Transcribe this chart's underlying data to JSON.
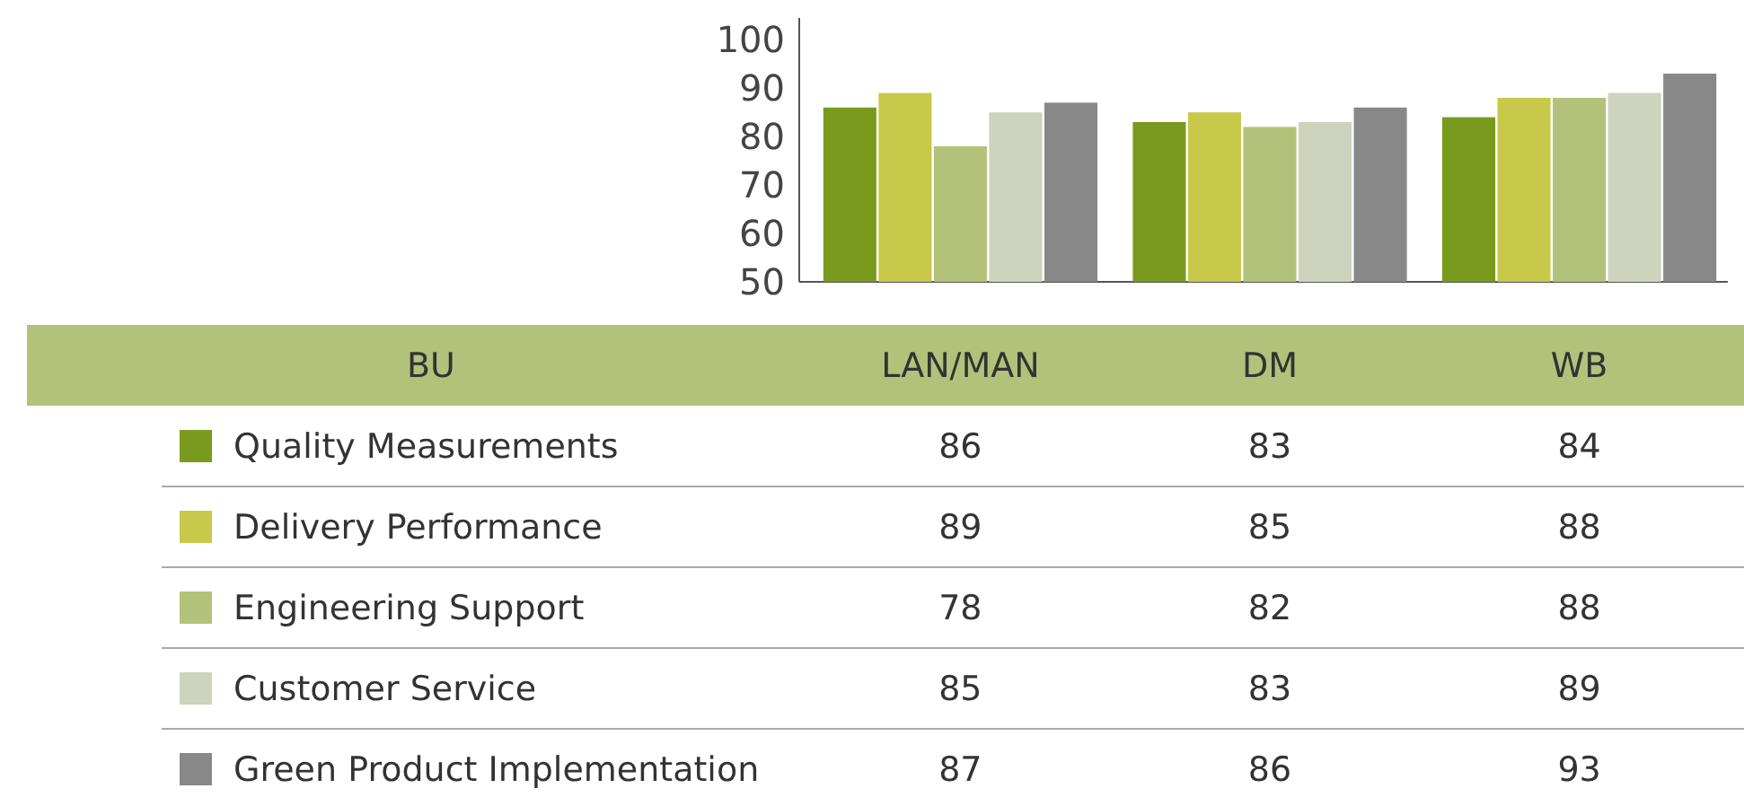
{
  "chart_data": {
    "type": "bar",
    "categories": [
      "LAN/MAN",
      "DM",
      "WB"
    ],
    "legend_title": "BU",
    "ylim": [
      50,
      104.5
    ],
    "yticks": [
      50,
      60,
      70,
      80,
      90,
      100
    ],
    "data_labels": true,
    "legend": "bottom",
    "series": [
      {
        "name": "Quality Measurements",
        "color": "#7a9a1e",
        "values": [
          86,
          83,
          84
        ]
      },
      {
        "name": "Delivery Performance",
        "color": "#c8c84a",
        "values": [
          89,
          85,
          88
        ]
      },
      {
        "name": "Engineering Support",
        "color": "#b3c27a",
        "values": [
          78,
          82,
          88
        ]
      },
      {
        "name": "Customer Service",
        "color": "#cdd3bd",
        "values": [
          85,
          83,
          89
        ]
      },
      {
        "name": "Green Product Implementation",
        "color": "#888888",
        "values": [
          87,
          86,
          93
        ]
      }
    ]
  }
}
